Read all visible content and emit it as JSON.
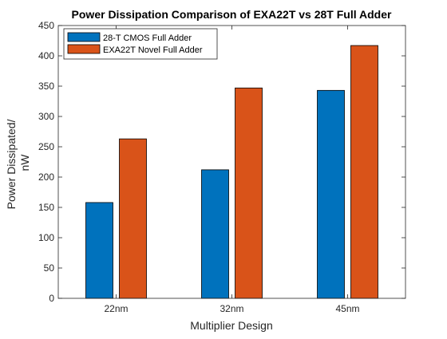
{
  "chart_data": {
    "type": "bar",
    "title": "Power Dissipation Comparison of EXA22T vs 28T Full Adder",
    "xlabel": "Multiplier Design",
    "ylabel": [
      "Power Dissipated/",
      "nW"
    ],
    "categories": [
      "22nm",
      "32nm",
      "45nm"
    ],
    "series": [
      {
        "name": "28-T CMOS Full Adder",
        "color": "#0072BD",
        "values": [
          158,
          212,
          343
        ]
      },
      {
        "name": "EXA22T Novel Full Adder",
        "color": "#D95319",
        "values": [
          263,
          347,
          417
        ]
      }
    ],
    "ylim": [
      0,
      450
    ],
    "yticks": [
      0,
      50,
      100,
      150,
      200,
      250,
      300,
      350,
      400,
      450
    ],
    "grid": false,
    "legend_position": "top-left"
  }
}
